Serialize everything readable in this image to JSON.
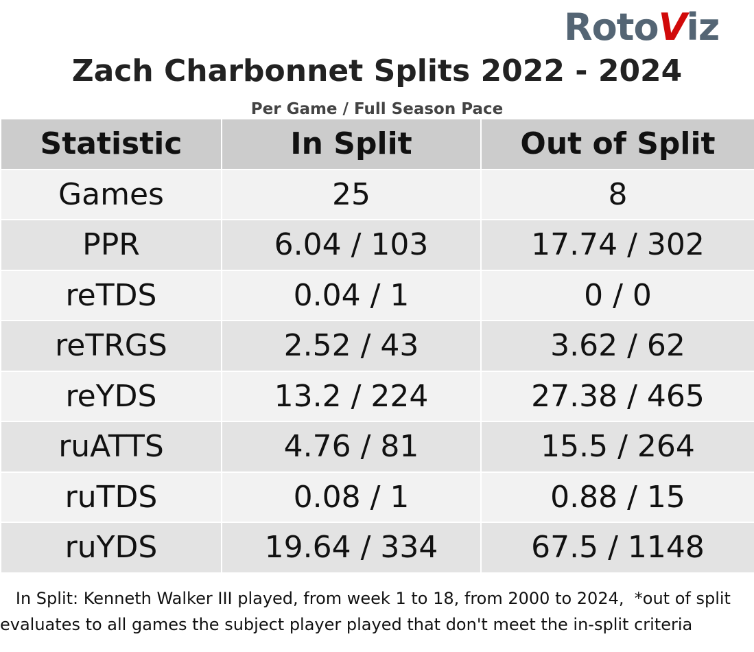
{
  "header": {
    "logo": [
      "Roto",
      "V",
      "iz"
    ],
    "title": "Zach Charbonnet Splits 2022 - 2024",
    "subtitle": "Per Game / Full Season Pace"
  },
  "table": {
    "columns": [
      "Statistic",
      "In Split",
      "Out of Split"
    ],
    "rows": [
      [
        "Games",
        "25",
        "8"
      ],
      [
        "PPR",
        "6.04 / 103",
        "17.74 / 302"
      ],
      [
        "reTDS",
        "0.04 / 1",
        "0 / 0"
      ],
      [
        "reTRGS",
        "2.52 / 43",
        "3.62 / 62"
      ],
      [
        "reYDS",
        "13.2 / 224",
        "27.38 / 465"
      ],
      [
        "ruATTS",
        "4.76 / 81",
        "15.5 / 264"
      ],
      [
        "ruTDS",
        "0.08 / 1",
        "0.88 / 15"
      ],
      [
        "ruYDS",
        "19.64 / 334",
        "67.5 / 1148"
      ]
    ]
  },
  "footnote": "   In Split: Kenneth Walker III played, from week 1 to 18, from 2000 to 2024,  *out of split evaluates to all games the subject player played that don't meet the in-split criteria"
}
